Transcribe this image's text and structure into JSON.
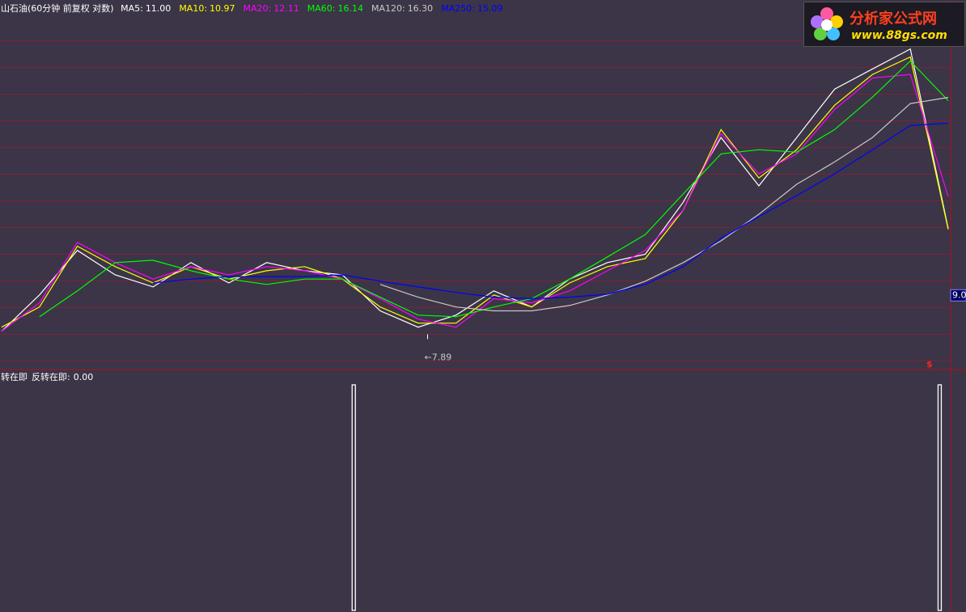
{
  "chart_data": [
    {
      "type": "line",
      "title": "山石油(60分钟 前复权 对数)",
      "log": true,
      "xlim": [
        0,
        100
      ],
      "ylim": [
        7.24,
        20.9
      ],
      "x": [
        0,
        4,
        8,
        12,
        16,
        20,
        24,
        28,
        32,
        36,
        40,
        44,
        48,
        52,
        56,
        60,
        64,
        68,
        72,
        76,
        80,
        84,
        88,
        92,
        96,
        100
      ],
      "series": [
        {
          "name": "MA5:",
          "last_label": "11.00",
          "color": "#ffffff",
          "values": [
            8.08,
            9.01,
            10.3,
            9.57,
            9.23,
            9.93,
            9.34,
            9.93,
            9.69,
            9.57,
            8.59,
            8.18,
            8.48,
            9.12,
            8.69,
            9.45,
            9.93,
            10.18,
            11.9,
            14.45,
            12.5,
            14.45,
            16.71,
            17.75,
            18.85,
            11.0
          ]
        },
        {
          "name": "MA10:",
          "last_label": "10.97",
          "color": "#ffff00",
          "values": [
            8.18,
            8.69,
            10.43,
            9.81,
            9.34,
            9.81,
            9.45,
            9.69,
            9.81,
            9.45,
            8.69,
            8.28,
            8.28,
            9.01,
            8.69,
            9.34,
            9.81,
            10.05,
            11.62,
            14.8,
            12.8,
            13.93,
            15.92,
            17.46,
            18.4,
            10.97
          ]
        },
        {
          "name": "MA20:",
          "last_label": "12.11",
          "color": "#ff00ff",
          "values": [
            8.08,
            8.8,
            10.55,
            9.93,
            9.45,
            9.81,
            9.57,
            9.81,
            9.69,
            9.45,
            8.91,
            8.38,
            8.18,
            8.91,
            8.8,
            9.12,
            9.69,
            10.3,
            11.62,
            14.62,
            12.96,
            13.76,
            15.72,
            17.28,
            17.46,
            12.11
          ]
        },
        {
          "name": "MA60:",
          "last_label": "16.14",
          "color": "#00ff00",
          "values": [
            null,
            8.44,
            9.12,
            9.93,
            10.0,
            9.69,
            9.45,
            9.3,
            9.45,
            9.45,
            8.95,
            8.48,
            8.44,
            8.69,
            8.91,
            9.45,
            10.1,
            10.8,
            12.2,
            13.76,
            13.93,
            13.83,
            14.8,
            16.31,
            18.18,
            16.14
          ]
        },
        {
          "name": "MA120:",
          "last_label": "16.30",
          "color": "#c8c8c8",
          "values": [
            null,
            null,
            null,
            null,
            null,
            null,
            null,
            null,
            null,
            null,
            9.3,
            8.95,
            8.69,
            8.59,
            8.59,
            8.73,
            9.01,
            9.39,
            9.93,
            10.6,
            11.48,
            12.56,
            13.43,
            14.45,
            16.0,
            16.3
          ]
        },
        {
          "name": "MA250:",
          "last_label": "15.09",
          "color": "#0000ff",
          "values": [
            null,
            null,
            null,
            null,
            9.34,
            9.45,
            9.52,
            9.52,
            9.52,
            9.57,
            9.39,
            9.23,
            9.08,
            8.95,
            8.91,
            8.95,
            9.03,
            9.3,
            9.81,
            10.68,
            11.4,
            12.14,
            12.96,
            13.93,
            14.98,
            15.09
          ]
        }
      ],
      "annotation": {
        "x": 45,
        "value": 7.89,
        "label": "←7.89"
      },
      "price_tag": {
        "value": 9.0,
        "label": "9.0"
      },
      "marker": "$"
    },
    {
      "type": "bar",
      "title": "转在即",
      "series_name": "反转在即:",
      "current": {
        "value": 0,
        "label": "0.00"
      },
      "xlim": [
        0,
        100
      ],
      "ylim": [
        0,
        1
      ],
      "x": [
        37.2,
        99.1
      ],
      "values": [
        1,
        1
      ],
      "color": "#ffffff"
    }
  ],
  "logo": {
    "name": "分析家公式网",
    "url": "www.88gs.com"
  }
}
